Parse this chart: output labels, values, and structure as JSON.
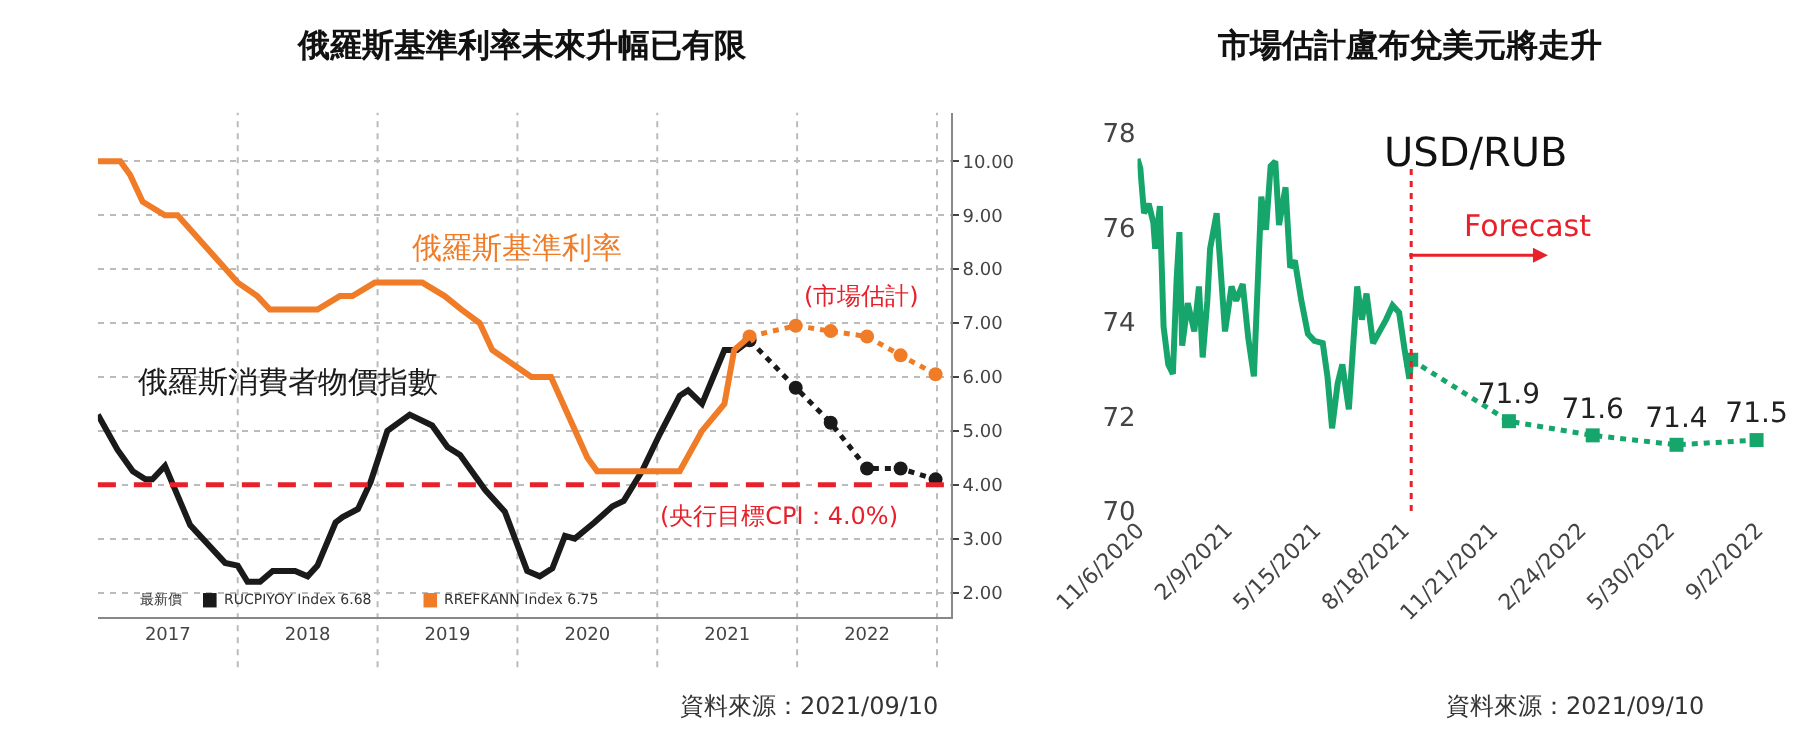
{
  "chart_data": [
    {
      "type": "line",
      "title": "俄羅斯基準利率未來升幅已有限",
      "legend_title": "最新價",
      "legend": "bottom left",
      "grid": true,
      "xlim": [
        2017,
        2023.1
      ],
      "ylim": [
        1.55,
        10.9
      ],
      "xticks": [
        {
          "value": 2017.5,
          "label": "2017"
        },
        {
          "value": 2018,
          "label": null
        },
        {
          "value": 2018.5,
          "label": "2018"
        },
        {
          "value": 2019,
          "label": null
        },
        {
          "value": 2019.5,
          "label": "2019"
        },
        {
          "value": 2020,
          "label": null
        },
        {
          "value": 2020.5,
          "label": "2020"
        },
        {
          "value": 2021,
          "label": null
        },
        {
          "value": 2021.5,
          "label": "2021"
        },
        {
          "value": 2022,
          "label": null
        },
        {
          "value": 2022.5,
          "label": "2022"
        },
        {
          "value": 2023,
          "label": null
        }
      ],
      "yticks": [
        {
          "value": 2,
          "label": "2.00"
        },
        {
          "value": 3,
          "label": "3.00"
        },
        {
          "value": 4,
          "label": "4.00"
        },
        {
          "value": 5,
          "label": "5.00"
        },
        {
          "value": 6,
          "label": "6.00"
        },
        {
          "value": 7,
          "label": "7.00"
        },
        {
          "value": 8,
          "label": "8.00"
        },
        {
          "value": 9,
          "label": "9.00"
        },
        {
          "value": 10,
          "label": "10.00"
        }
      ],
      "series": [
        {
          "name": "RUCPIYOY Index 6.68",
          "color": "#1a1a1a",
          "line_style": "solid",
          "x": [
            2017.0,
            2017.14,
            2017.25,
            2017.34,
            2017.39,
            2017.48,
            2017.66,
            2017.91,
            2018.0,
            2018.07,
            2018.16,
            2018.25,
            2018.41,
            2018.5,
            2018.57,
            2018.7,
            2018.75,
            2018.86,
            2018.95,
            2019.07,
            2019.23,
            2019.39,
            2019.5,
            2019.59,
            2019.77,
            2019.91,
            2020.07,
            2020.16,
            2020.25,
            2020.34,
            2020.41,
            2020.55,
            2020.68,
            2020.76,
            2020.89,
            2021.02,
            2021.16,
            2021.22,
            2021.32,
            2021.48,
            2021.57,
            2021.66
          ],
          "values": [
            5.3,
            4.65,
            4.25,
            4.1,
            4.1,
            4.35,
            3.25,
            2.55,
            2.5,
            2.2,
            2.2,
            2.4,
            2.4,
            2.3,
            2.5,
            3.3,
            3.4,
            3.55,
            4.05,
            5.0,
            5.3,
            5.1,
            4.7,
            4.55,
            3.9,
            3.5,
            2.4,
            2.3,
            2.45,
            3.05,
            3.0,
            3.3,
            3.6,
            3.7,
            4.25,
            4.95,
            5.65,
            5.75,
            5.5,
            6.5,
            6.5,
            6.68
          ]
        },
        {
          "name": "RREFKANN Index 6.75",
          "color": "#f07c27",
          "line_style": "solid",
          "x": [
            2017.0,
            2017.16,
            2017.23,
            2017.32,
            2017.48,
            2017.57,
            2018.0,
            2018.14,
            2018.23,
            2018.57,
            2018.73,
            2018.82,
            2018.98,
            2019.32,
            2019.48,
            2019.6,
            2019.73,
            2019.82,
            2020.1,
            2020.24,
            2020.5,
            2020.57,
            2021.16,
            2021.32,
            2021.48,
            2021.55,
            2021.66
          ],
          "values": [
            10.0,
            10.0,
            9.75,
            9.25,
            9.0,
            9.0,
            7.75,
            7.5,
            7.25,
            7.25,
            7.5,
            7.5,
            7.75,
            7.75,
            7.5,
            7.25,
            7.0,
            6.5,
            6.0,
            6.0,
            4.5,
            4.25,
            4.25,
            5.0,
            5.5,
            6.5,
            6.75
          ]
        },
        {
          "color": "#1a1a1a",
          "line_style": "dotted",
          "marker": "circle",
          "x": [
            2021.66,
            2021.99,
            2022.24,
            2022.5,
            2022.74,
            2022.99
          ],
          "values": [
            6.68,
            5.8,
            5.15,
            4.3,
            4.3,
            4.1
          ]
        },
        {
          "color": "#f07c27",
          "line_style": "dotted",
          "marker": "circle",
          "x": [
            2021.66,
            2021.99,
            2022.24,
            2022.5,
            2022.74,
            2022.99
          ],
          "values": [
            6.75,
            6.95,
            6.85,
            6.75,
            6.4,
            6.05
          ]
        }
      ],
      "ref_lines": [
        {
          "axis": "y",
          "value": 4.0,
          "label": "(央行目標CPI：4.0%)",
          "color": "#e8202a",
          "line_style": "dashed"
        }
      ],
      "annotations": [
        "俄羅斯基準利率",
        "俄羅斯消費者物價指數",
        "(市場估計)",
        "資料來源：2021/09/10"
      ]
    },
    {
      "type": "line",
      "title": "市場估計盧布兌美元將走升",
      "grid": false,
      "xlim": [
        "2020-11-06",
        "2022-09-02"
      ],
      "ylim": [
        70,
        78
      ],
      "yticks": [
        70,
        72,
        74,
        76,
        78
      ],
      "xticks": [
        {
          "value": "2020-11-06",
          "label": "11/6/2020"
        },
        {
          "value": "2021-02-09",
          "label": "2/9/2021"
        },
        {
          "value": "2021-05-15",
          "label": "5/15/2021"
        },
        {
          "value": "2021-08-18",
          "label": "8/18/2021"
        },
        {
          "value": "2021-11-21",
          "label": "11/21/2021"
        },
        {
          "value": "2022-02-24",
          "label": "2/24/2022"
        },
        {
          "value": "2022-05-30",
          "label": "5/30/2022"
        },
        {
          "value": "2022-09-02",
          "label": "9/2/2022"
        }
      ],
      "series": [
        {
          "color": "#16a66b",
          "line_style": "solid",
          "x": [
            "2020-11-06",
            "2020-11-09",
            "2020-11-13",
            "2020-11-18",
            "2020-11-23",
            "2020-11-25",
            "2020-11-30",
            "2020-12-04",
            "2020-12-09",
            "2020-12-14",
            "2020-12-18",
            "2020-12-21",
            "2020-12-24",
            "2020-12-30",
            "2021-01-06",
            "2021-01-11",
            "2021-01-15",
            "2021-01-20",
            "2021-01-23",
            "2021-01-30",
            "2021-02-08",
            "2021-02-15",
            "2021-02-20",
            "2021-02-27",
            "2021-03-05",
            "2021-03-11",
            "2021-03-19",
            "2021-03-24",
            "2021-03-29",
            "2021-04-03",
            "2021-04-07",
            "2021-04-14",
            "2021-04-19",
            "2021-04-24",
            "2021-05-01",
            "2021-05-08",
            "2021-05-15",
            "2021-05-24",
            "2021-05-29",
            "2021-06-03",
            "2021-06-09",
            "2021-06-14",
            "2021-06-21",
            "2021-06-26",
            "2021-06-30",
            "2021-07-05",
            "2021-07-10",
            "2021-07-17",
            "2021-07-24",
            "2021-07-31",
            "2021-08-07",
            "2021-08-14",
            "2021-08-20",
            "2021-08-25",
            "2021-08-27"
          ],
          "values": [
            77.45,
            77.25,
            76.3,
            76.5,
            76.1,
            75.55,
            76.45,
            73.9,
            73.1,
            72.9,
            74.9,
            75.9,
            73.5,
            74.4,
            73.8,
            74.75,
            73.25,
            74.45,
            75.55,
            76.3,
            73.8,
            74.75,
            74.45,
            74.8,
            73.65,
            72.85,
            76.65,
            75.95,
            77.3,
            77.4,
            76.05,
            76.85,
            75.15,
            75.3,
            74.45,
            73.75,
            73.6,
            73.55,
            72.85,
            71.75,
            72.7,
            73.1,
            72.15,
            73.6,
            74.75,
            74.05,
            74.6,
            73.55,
            73.8,
            74.05,
            74.35,
            74.2,
            73.4,
            72.8,
            73.2
          ]
        },
        {
          "color": "#16a66b",
          "line_style": "dotted",
          "marker": "square",
          "x": [
            "2021-08-27",
            "2021-12-10",
            "2022-03-10",
            "2022-06-08",
            "2022-09-02"
          ],
          "values": [
            73.2,
            71.9,
            71.6,
            71.4,
            71.5
          ],
          "value_labels": [
            null,
            "71.9",
            "71.6",
            "71.4",
            "71.5"
          ]
        }
      ],
      "ref_lines": [
        {
          "axis": "x",
          "value": "2021-08-27",
          "color": "#e8202a",
          "line_style": "dotted"
        }
      ],
      "annotations": [
        "USD/RUB",
        "Forecast",
        "資料來源：2021/09/10"
      ]
    }
  ]
}
